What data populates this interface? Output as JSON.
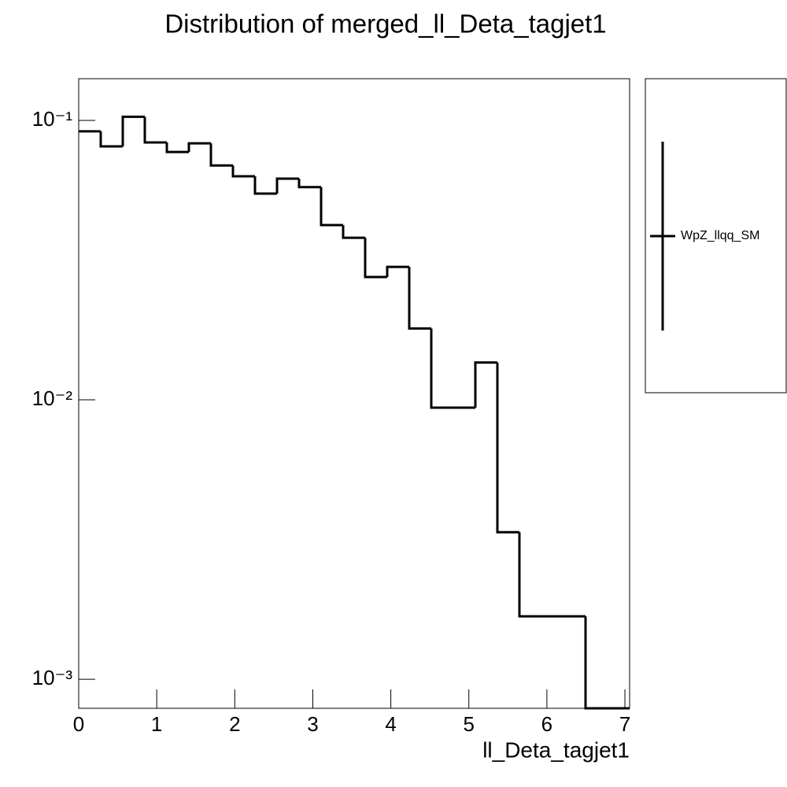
{
  "chart_data": {
    "type": "histogram",
    "title": "Distribution of merged_ll_Deta_tagjet1",
    "x_label": "ll_Deta_tagjet1",
    "bins": [
      0,
      0.2824,
      0.5648,
      0.8472,
      1.1296,
      1.412,
      1.6944,
      1.9768,
      2.2592,
      2.5416,
      2.824,
      3.1064,
      3.3888,
      3.6712,
      3.9536,
      4.236,
      4.5184,
      4.8008,
      5.0832,
      5.3656,
      5.648,
      5.9304,
      6.2128,
      6.4952,
      6.7776,
      7.06
    ],
    "series": [
      {
        "name": "WpZ_llqq_SM",
        "color": "#000000",
        "values": [
          0.0914,
          0.0807,
          0.103,
          0.0834,
          0.0771,
          0.0828,
          0.069,
          0.0631,
          0.0547,
          0.0619,
          0.0577,
          0.0422,
          0.038,
          0.0275,
          0.0299,
          0.018,
          0.00937,
          0.00937,
          0.0136,
          0.00336,
          0.00168,
          0.00168,
          0.00168,
          0,
          0
        ]
      }
    ],
    "xlim": [
      0,
      7.06
    ],
    "xticks": [
      0,
      1,
      2,
      3,
      4,
      5,
      6,
      7
    ],
    "ylim": [
      0.000787,
      0.141
    ],
    "log_y": true,
    "yticks": [
      {
        "value": 0.001,
        "label": "10⁻³"
      },
      {
        "value": 0.01,
        "label": "10⁻²"
      },
      {
        "value": 0.1,
        "label": "10⁻¹"
      }
    ],
    "legend": "right"
  }
}
